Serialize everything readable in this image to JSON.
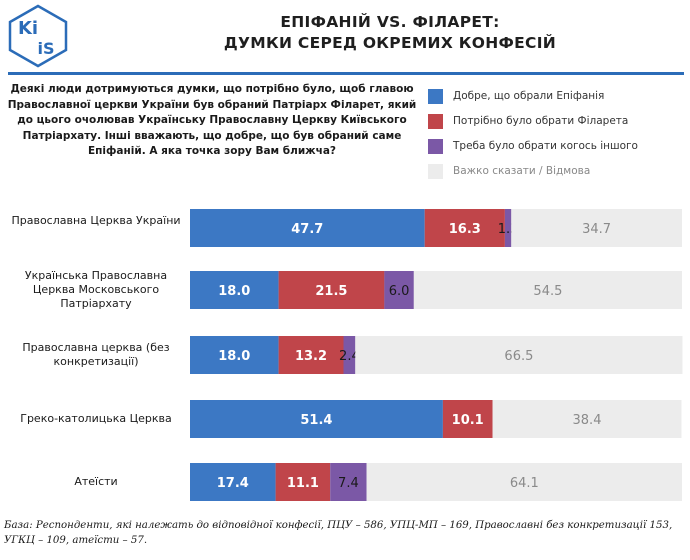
{
  "logo": {
    "text_top": "Ki",
    "text_bottom": "iS"
  },
  "title": {
    "line1": "ЕПІФАНІЙ VS. ФІЛАРЕТ:",
    "line2": "ДУМКИ СЕРЕД ОКРЕМИХ КОНФЕСІЙ"
  },
  "question": "Деякі люди дотримуються думки, що потрібно було, щоб главою Православної церкви України був обраний Патріарх Філарет, який до цього очолював Українську Православну Церкву Київського Патріархату. Інші вважають, що добре, що був обраний саме Епіфаній. А яка точка зору Вам ближча?",
  "colors": {
    "accent": "#2b6cb8",
    "blue": "#3c78c4",
    "red": "#c0454a",
    "purple": "#7b58a6",
    "gray": "#ececec"
  },
  "chart_data": {
    "type": "bar",
    "orientation": "horizontal-stacked",
    "categories": [
      "Православна Церква України",
      "Українська Православна Церква Московського Патріархату",
      "Православна церква (без конкретизації)",
      "Греко-католицька Церква",
      "Атеїсти"
    ],
    "series": [
      {
        "name": "Добре, що обрали Епіфанія",
        "color": "#3c78c4",
        "values": [
          47.7,
          18.0,
          18.0,
          51.4,
          17.4
        ],
        "labels": [
          "47.7",
          "18.0",
          "18.0",
          "51.4",
          "17.4"
        ]
      },
      {
        "name": "Потрібно було обрати Філарета",
        "color": "#c0454a",
        "values": [
          16.3,
          21.5,
          13.2,
          10.1,
          11.1
        ],
        "labels": [
          "16.3",
          "21.5",
          "13.2",
          "10.1",
          "11.1"
        ]
      },
      {
        "name": "Треба було обрати когось іншого",
        "color": "#7b58a6",
        "values": [
          1.3,
          6.0,
          2.4,
          0,
          7.4
        ],
        "labels": [
          "1.3",
          "6.0",
          "2.4",
          "",
          "7.4"
        ]
      },
      {
        "name": "Важко сказати / Відмова",
        "color": "#ececec",
        "values": [
          34.7,
          54.5,
          66.5,
          38.4,
          64.1
        ],
        "labels": [
          "34.7",
          "54.5",
          "66.5",
          "38.4",
          "64.1"
        ]
      }
    ],
    "xlim": [
      0,
      100
    ],
    "legend": "top-right"
  },
  "footnote": "База: Респонденти, які належать до відповідної конфесії, ПЦУ – 586, УПЦ-МП – 169, Православні без конкретизації 153, УГКЦ – 109, атеїсти – 57."
}
